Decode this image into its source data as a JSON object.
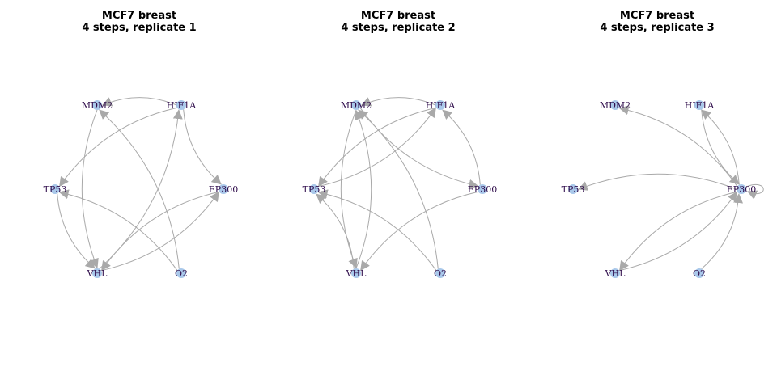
{
  "nodes": [
    "MDM2",
    "HIF1A",
    "TP53",
    "EP300",
    "VHL",
    "O2"
  ],
  "panels": [
    {
      "title_line1": "MCF7 breast",
      "title_line2": "4 steps, replicate 1",
      "edges": [
        {
          "from": "HIF1A",
          "to": "MDM2"
        },
        {
          "from": "HIF1A",
          "to": "EP300"
        },
        {
          "from": "HIF1A",
          "to": "TP53"
        },
        {
          "from": "VHL",
          "to": "HIF1A"
        },
        {
          "from": "MDM2",
          "to": "VHL"
        },
        {
          "from": "O2",
          "to": "MDM2"
        },
        {
          "from": "TP53",
          "to": "VHL"
        },
        {
          "from": "O2",
          "to": "TP53"
        },
        {
          "from": "EP300",
          "to": "VHL"
        },
        {
          "from": "VHL",
          "to": "EP300"
        }
      ]
    },
    {
      "title_line1": "MCF7 breast",
      "title_line2": "4 steps, replicate 2",
      "edges": [
        {
          "from": "HIF1A",
          "to": "MDM2"
        },
        {
          "from": "MDM2",
          "to": "EP300"
        },
        {
          "from": "EP300",
          "to": "HIF1A"
        },
        {
          "from": "TP53",
          "to": "HIF1A"
        },
        {
          "from": "HIF1A",
          "to": "TP53"
        },
        {
          "from": "VHL",
          "to": "MDM2"
        },
        {
          "from": "O2",
          "to": "MDM2"
        },
        {
          "from": "MDM2",
          "to": "VHL"
        },
        {
          "from": "VHL",
          "to": "TP53"
        },
        {
          "from": "O2",
          "to": "TP53"
        },
        {
          "from": "EP300",
          "to": "VHL"
        }
      ]
    },
    {
      "title_line1": "MCF7 breast",
      "title_line2": "4 steps, replicate 3",
      "edges": [
        {
          "from": "EP300",
          "to": "MDM2"
        },
        {
          "from": "EP300",
          "to": "HIF1A"
        },
        {
          "from": "HIF1A",
          "to": "EP300"
        },
        {
          "from": "EP300",
          "to": "TP53"
        },
        {
          "from": "EP300",
          "to": "VHL"
        },
        {
          "from": "VHL",
          "to": "EP300"
        },
        {
          "from": "O2",
          "to": "EP300"
        },
        {
          "from": "EP300",
          "to": "EP300"
        }
      ]
    }
  ]
}
